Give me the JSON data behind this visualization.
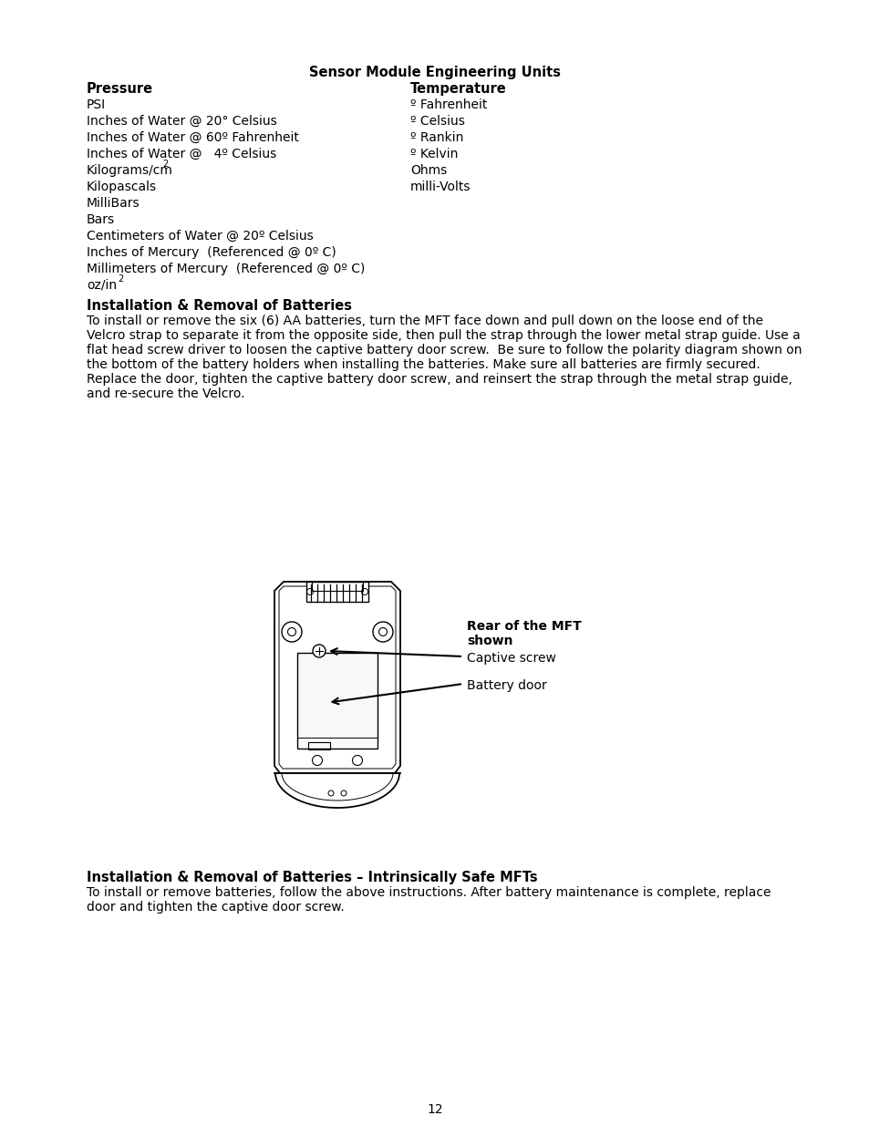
{
  "bg_color": "#ffffff",
  "page_number": "12",
  "title": "Sensor Module Engineering Units",
  "pressure_header": "Pressure",
  "temperature_header": "Temperature",
  "pressure_items": [
    "PSI",
    "Inches of Water @ 20° Celsius",
    "Inches of Water @ 60º Fahrenheit",
    "Inches of Water @   4º Celsius",
    "Kilograms/cm",
    "Kilopascals",
    "MilliBars",
    "Bars",
    "Centimeters of Water @ 20º Celsius",
    "Inches of Mercury  (Referenced @ 0º C)",
    "Millimeters of Mercury  (Referenced @ 0º C)",
    "oz/in"
  ],
  "temperature_items": [
    "º Fahrenheit",
    "º Celsius",
    "º Rankin",
    "º Kelvin",
    "Ohms",
    "milli-Volts"
  ],
  "section2_header": "Installation & Removal of Batteries",
  "section2_lines": [
    "To install or remove the six (6) AA batteries, turn the MFT face down and pull down on the loose end of the",
    "Velcro strap to separate it from the opposite side, then pull the strap through the lower metal strap guide. Use a",
    "flat head screw driver to loosen the captive battery door screw.  Be sure to follow the polarity diagram shown on",
    "the bottom of the battery holders when installing the batteries. Make sure all batteries are firmly secured.",
    "Replace the door, tighten the captive battery door screw, and reinsert the strap through the metal strap guide,",
    "and re-secure the Velcro."
  ],
  "diagram_label1_bold": "Rear of the MFT",
  "diagram_label1_normal": "shown",
  "diagram_label2": "Captive screw",
  "diagram_label3": "Battery door",
  "section3_header": "Installation & Removal of Batteries – Intrinsically Safe MFTs",
  "section3_lines": [
    "To install or remove batteries, follow the above instructions. After battery maintenance is complete, replace",
    "door and tighten the captive door screw."
  ]
}
